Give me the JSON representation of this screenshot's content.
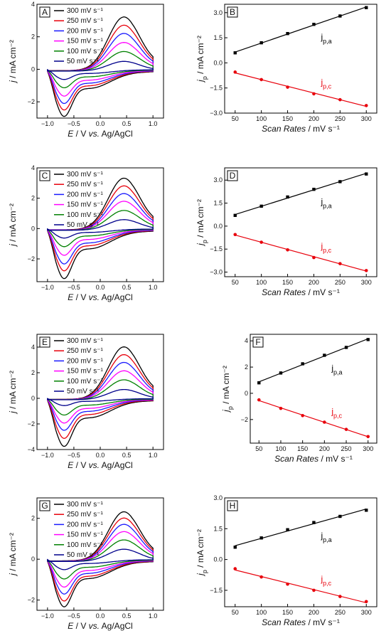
{
  "figure": {
    "cv_xlabel": "E / V vs. Ag/AgCl",
    "cv_ylabel": "j / mA cm⁻²",
    "rate_xlabel": "Scan Rates / mV s⁻¹",
    "rate_ylabel": "jp / mA cm⁻²",
    "anodic_label": "jp,a",
    "cathodic_label": "jp,c",
    "colors": {
      "300": "#000000",
      "250": "#e8000b",
      "200": "#1a1aff",
      "150": "#ff00ff",
      "100": "#008000",
      "50": "#00008b",
      "anodic": "#000000",
      "cathodic": "#e8000b"
    }
  },
  "chart_data": [
    {
      "panel": "A",
      "type": "line",
      "xlabel": "E / V vs. Ag/AgCl",
      "ylabel": "j / mA cm⁻²",
      "xlim": [
        -1.2,
        1.2
      ],
      "ylim": [
        -3,
        4
      ],
      "xticks": [
        -1.0,
        -0.5,
        0.0,
        0.5,
        1.0
      ],
      "yticks": [
        -2,
        0,
        2,
        4
      ],
      "legend": "top-left",
      "series": [
        {
          "name": "300 mV s⁻¹",
          "rate": 300,
          "anodic_peak": 3.3,
          "cathodic_peak": -2.55
        },
        {
          "name": "250 mV s⁻¹",
          "rate": 250,
          "anodic_peak": 2.8,
          "cathodic_peak": -2.2
        },
        {
          "name": "200 mV s⁻¹",
          "rate": 200,
          "anodic_peak": 2.3,
          "cathodic_peak": -1.85
        },
        {
          "name": "150 mV s⁻¹",
          "rate": 150,
          "anodic_peak": 1.75,
          "cathodic_peak": -1.45
        },
        {
          "name": "100 mV s⁻¹",
          "rate": 100,
          "anodic_peak": 1.2,
          "cathodic_peak": -1.0
        },
        {
          "name": "50 mV s⁻¹",
          "rate": 50,
          "anodic_peak": 0.6,
          "cathodic_peak": -0.55
        }
      ]
    },
    {
      "panel": "B",
      "type": "scatter",
      "xlabel": "Scan Rates / mV s⁻¹",
      "ylabel": "jp / mA cm⁻²",
      "xlim": [
        30,
        320
      ],
      "ylim": [
        -3.0,
        3.5
      ],
      "xticks": [
        50,
        100,
        150,
        200,
        250,
        300
      ],
      "yticks": [
        -3.0,
        -1.5,
        0.0,
        1.5,
        3.0
      ],
      "tick_decimals": 1,
      "x": [
        50,
        100,
        150,
        200,
        250,
        300
      ],
      "series": [
        {
          "name": "jp,a",
          "values": [
            0.6,
            1.2,
            1.75,
            2.3,
            2.8,
            3.3
          ]
        },
        {
          "name": "jp,c",
          "values": [
            -0.55,
            -1.0,
            -1.45,
            -1.85,
            -2.2,
            -2.55
          ]
        }
      ]
    },
    {
      "panel": "C",
      "type": "line",
      "xlabel": "E / V vs. Ag/AgCl",
      "ylabel": "j / mA cm⁻²",
      "xlim": [
        -1.2,
        1.2
      ],
      "ylim": [
        -3.5,
        4
      ],
      "xticks": [
        -1.0,
        -0.5,
        0.0,
        0.5,
        1.0
      ],
      "yticks": [
        -2,
        0,
        2,
        4
      ],
      "legend": "top-left",
      "series": [
        {
          "name": "300 mV s⁻¹",
          "rate": 300,
          "anodic_peak": 3.4,
          "cathodic_peak": -2.9
        },
        {
          "name": "250 mV s⁻¹",
          "rate": 250,
          "anodic_peak": 2.9,
          "cathodic_peak": -2.45
        },
        {
          "name": "200 mV s⁻¹",
          "rate": 200,
          "anodic_peak": 2.4,
          "cathodic_peak": -2.05
        },
        {
          "name": "150 mV s⁻¹",
          "rate": 150,
          "anodic_peak": 1.9,
          "cathodic_peak": -1.55
        },
        {
          "name": "100 mV s⁻¹",
          "rate": 100,
          "anodic_peak": 1.3,
          "cathodic_peak": -1.05
        },
        {
          "name": "50 mV s⁻¹",
          "rate": 50,
          "anodic_peak": 0.7,
          "cathodic_peak": -0.55
        }
      ]
    },
    {
      "panel": "D",
      "type": "scatter",
      "xlabel": "Scan Rates / mV s⁻¹",
      "ylabel": "jp / mA cm⁻²",
      "xlim": [
        30,
        320
      ],
      "ylim": [
        -3.3,
        3.8
      ],
      "xticks": [
        50,
        100,
        150,
        200,
        250,
        300
      ],
      "yticks": [
        -3.0,
        -1.5,
        0.0,
        1.5,
        3.0
      ],
      "tick_decimals": 1,
      "x": [
        50,
        100,
        150,
        200,
        250,
        300
      ],
      "series": [
        {
          "name": "jp,a",
          "values": [
            0.7,
            1.3,
            1.9,
            2.4,
            2.9,
            3.4
          ]
        },
        {
          "name": "jp,c",
          "values": [
            -0.55,
            -1.05,
            -1.55,
            -2.05,
            -2.45,
            -2.9
          ]
        }
      ]
    },
    {
      "panel": "E",
      "type": "line",
      "xlabel": "E / V vs. Ag/AgCl",
      "ylabel": "j / mA cm⁻²",
      "xlim": [
        -1.2,
        1.2
      ],
      "ylim": [
        -4,
        5
      ],
      "xticks": [
        -1.0,
        -0.5,
        0.0,
        0.5,
        1.0
      ],
      "yticks": [
        -4,
        -2,
        0,
        2,
        4
      ],
      "legend": "top-left",
      "series": [
        {
          "name": "300 mV s⁻¹",
          "rate": 300,
          "anodic_peak": 4.1,
          "cathodic_peak": -3.3
        },
        {
          "name": "250 mV s⁻¹",
          "rate": 250,
          "anodic_peak": 3.5,
          "cathodic_peak": -2.75
        },
        {
          "name": "200 mV s⁻¹",
          "rate": 200,
          "anodic_peak": 2.9,
          "cathodic_peak": -2.2
        },
        {
          "name": "150 mV s⁻¹",
          "rate": 150,
          "anodic_peak": 2.25,
          "cathodic_peak": -1.7
        },
        {
          "name": "100 mV s⁻¹",
          "rate": 100,
          "anodic_peak": 1.55,
          "cathodic_peak": -1.15
        },
        {
          "name": "50 mV s⁻¹",
          "rate": 50,
          "anodic_peak": 0.8,
          "cathodic_peak": -0.5
        }
      ]
    },
    {
      "panel": "F",
      "type": "scatter",
      "xlabel": "Scan Rates / mV s⁻¹",
      "ylabel": "jp / mA cm⁻²",
      "xlim": [
        30,
        320
      ],
      "ylim": [
        -3.8,
        4.5
      ],
      "xticks": [
        50,
        100,
        150,
        200,
        250,
        300
      ],
      "yticks": [
        -2,
        0,
        2,
        4
      ],
      "tick_decimals": 0,
      "x": [
        50,
        100,
        150,
        200,
        250,
        300
      ],
      "series": [
        {
          "name": "jp,a",
          "values": [
            0.8,
            1.55,
            2.25,
            2.9,
            3.5,
            4.1
          ]
        },
        {
          "name": "jp,c",
          "values": [
            -0.5,
            -1.15,
            -1.7,
            -2.2,
            -2.75,
            -3.3
          ]
        }
      ]
    },
    {
      "panel": "G",
      "type": "line",
      "xlabel": "E / V vs. Ag/AgCl",
      "ylabel": "j / mA cm⁻²",
      "xlim": [
        -1.2,
        1.2
      ],
      "ylim": [
        -2.5,
        3.0
      ],
      "xticks": [
        -1.0,
        -0.5,
        0.0,
        0.5,
        1.0
      ],
      "yticks": [
        -2,
        0,
        2
      ],
      "legend": "top-left",
      "series": [
        {
          "name": "300 mV s⁻¹",
          "rate": 300,
          "anodic_peak": 2.4,
          "cathodic_peak": -2.05
        },
        {
          "name": "250 mV s⁻¹",
          "rate": 250,
          "anodic_peak": 2.1,
          "cathodic_peak": -1.8
        },
        {
          "name": "200 mV s⁻¹",
          "rate": 200,
          "anodic_peak": 1.8,
          "cathodic_peak": -1.5
        },
        {
          "name": "150 mV s⁻¹",
          "rate": 150,
          "anodic_peak": 1.45,
          "cathodic_peak": -1.2
        },
        {
          "name": "100 mV s⁻¹",
          "rate": 100,
          "anodic_peak": 1.05,
          "cathodic_peak": -0.85
        },
        {
          "name": "50 mV s⁻¹",
          "rate": 50,
          "anodic_peak": 0.6,
          "cathodic_peak": -0.45
        }
      ]
    },
    {
      "panel": "H",
      "type": "scatter",
      "xlabel": "Scan Rates / mV s⁻¹",
      "ylabel": "jp / mA cm⁻²",
      "xlim": [
        30,
        320
      ],
      "ylim": [
        -2.3,
        3.0
      ],
      "xticks": [
        50,
        100,
        150,
        200,
        250,
        300
      ],
      "yticks": [
        -1.5,
        0.0,
        1.5,
        3.0
      ],
      "tick_decimals": 1,
      "x": [
        50,
        100,
        150,
        200,
        250,
        300
      ],
      "series": [
        {
          "name": "jp,a",
          "values": [
            0.6,
            1.05,
            1.45,
            1.8,
            2.1,
            2.4
          ]
        },
        {
          "name": "jp,c",
          "values": [
            -0.45,
            -0.85,
            -1.2,
            -1.5,
            -1.8,
            -2.05
          ]
        }
      ]
    }
  ]
}
